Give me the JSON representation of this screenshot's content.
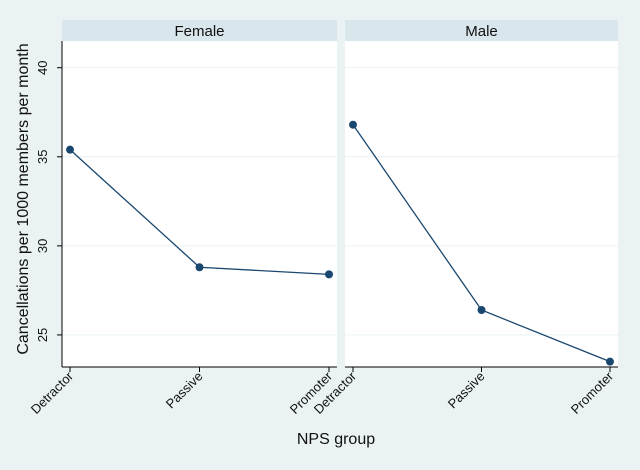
{
  "chart_data": {
    "type": "line",
    "xlabel": "NPS group",
    "ylabel": "Cancellations per 1000 members per month",
    "ylim": [
      23.2,
      41.5
    ],
    "yticks": [
      25,
      30,
      35,
      40
    ],
    "categories": [
      "Detractor",
      "Passive",
      "Promoter"
    ],
    "grid": true,
    "legend": "none",
    "colors": {
      "background": "#eaf2f3",
      "panel": "#ffffff",
      "strip": "#d9e6eb",
      "line": "#1a476f",
      "marker": "#1a476f",
      "grid": "#eaf2f3"
    },
    "panels": [
      {
        "title": "Female",
        "values": [
          35.4,
          28.8,
          28.4
        ]
      },
      {
        "title": "Male",
        "values": [
          36.8,
          26.4,
          23.5
        ]
      }
    ]
  }
}
